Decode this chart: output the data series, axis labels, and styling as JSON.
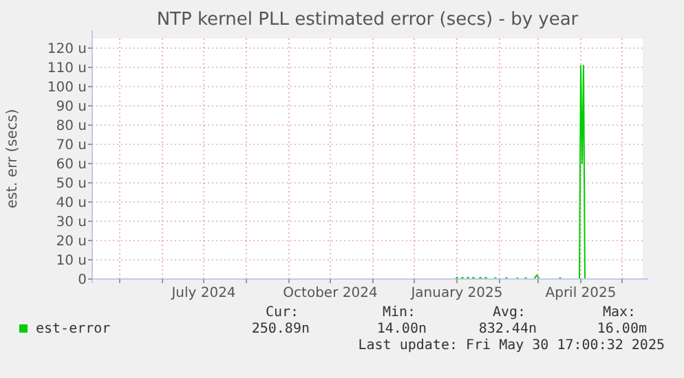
{
  "chart_data": {
    "type": "line",
    "title": "NTP kernel PLL estimated error (secs) - by year",
    "ylabel": "est. err (secs)",
    "x": [
      "2024-11-03",
      "2024-12-31",
      "2025-01-01",
      "2025-01-02",
      "2025-01-04",
      "2025-01-05",
      "2025-01-06",
      "2025-01-08",
      "2025-01-09",
      "2025-01-10",
      "2025-01-12",
      "2025-01-13",
      "2025-01-14",
      "2025-01-17",
      "2025-01-18",
      "2025-01-19",
      "2025-01-21",
      "2025-01-22",
      "2025-01-23",
      "2025-01-28",
      "2025-01-29",
      "2025-01-30",
      "2025-02-05",
      "2025-02-06",
      "2025-02-07",
      "2025-02-13",
      "2025-02-14",
      "2025-02-15",
      "2025-02-19",
      "2025-02-20",
      "2025-02-21",
      "2025-02-26",
      "2025-02-28",
      "2025-03-02",
      "2025-03-16",
      "2025-03-17",
      "2025-03-18",
      "2025-03-31",
      "2025-04-01",
      "2025-04-02",
      "2025-04-03",
      "2025-04-04",
      "2025-05-16"
    ],
    "series": [
      {
        "name": "est-error",
        "color": "#00cc00",
        "values": [
          0,
          0,
          0.8,
          0,
          0,
          0.8,
          0,
          0,
          0.8,
          0,
          0,
          0.8,
          0,
          0,
          0.8,
          0,
          0,
          0.8,
          0,
          0,
          0.6,
          0,
          0,
          0.6,
          0,
          0,
          0.5,
          0,
          0,
          0.6,
          0,
          0,
          2,
          0,
          0,
          0.6,
          0,
          0,
          111,
          60,
          111,
          0,
          0
        ]
      }
    ],
    "xlim": [
      "2024-04-11",
      "2025-05-16"
    ],
    "xticks": [
      {
        "value": "2024-05-01",
        "label": null
      },
      {
        "value": "2024-06-01",
        "label": null
      },
      {
        "value": "2024-07-01",
        "label": "July 2024"
      },
      {
        "value": "2024-08-01",
        "label": null
      },
      {
        "value": "2024-09-01",
        "label": null
      },
      {
        "value": "2024-10-01",
        "label": "October 2024"
      },
      {
        "value": "2024-11-01",
        "label": null
      },
      {
        "value": "2024-12-01",
        "label": null
      },
      {
        "value": "2025-01-01",
        "label": "January 2025"
      },
      {
        "value": "2025-02-01",
        "label": null
      },
      {
        "value": "2025-03-01",
        "label": null
      },
      {
        "value": "2025-04-01",
        "label": "April 2025"
      },
      {
        "value": "2025-05-01",
        "label": null
      }
    ],
    "ylim": [
      0,
      125
    ],
    "yticks": [
      0,
      {
        "value": 10,
        "label": "10 u"
      },
      {
        "value": 20,
        "label": "20 u"
      },
      {
        "value": 30,
        "label": "30 u"
      },
      {
        "value": 40,
        "label": "40 u"
      },
      {
        "value": 50,
        "label": "50 u"
      },
      {
        "value": 60,
        "label": "60 u"
      },
      {
        "value": 70,
        "label": "70 u"
      },
      {
        "value": 80,
        "label": "80 u"
      },
      {
        "value": 90,
        "label": "90 u"
      },
      {
        "value": 100,
        "label": "100 u"
      },
      {
        "value": 110,
        "label": "110 u"
      },
      {
        "value": 120,
        "label": "120 u"
      }
    ],
    "grid": true,
    "legend": "bottom",
    "annotations": [
      "Cur:",
      "250.89n",
      "Min:",
      "14.00n",
      "Avg:",
      "832.44n",
      "Max:",
      "16.00m",
      "Last update: Fri May 30 17:00:32 2025"
    ]
  }
}
